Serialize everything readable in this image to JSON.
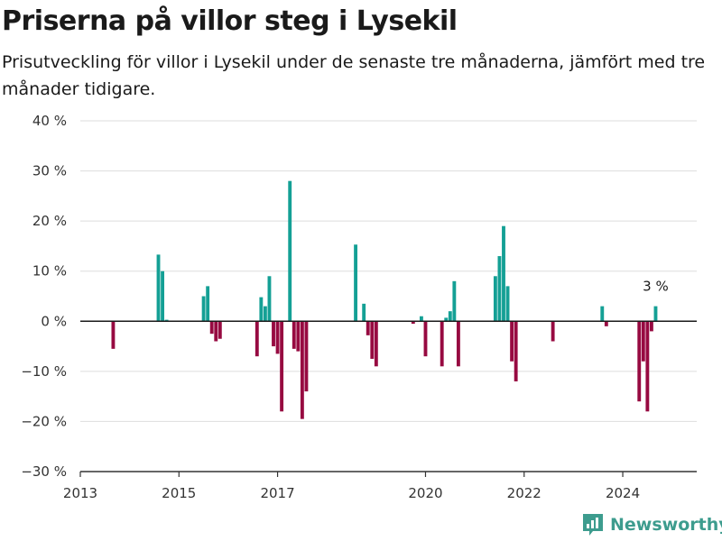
{
  "title": "Priserna på villor steg i Lysekil",
  "subtitle": "Prisutveckling för villor i Lysekil under de senaste tre månaderna, jämfört med tre månader tidigare.",
  "brand": {
    "name": "Newsworthy",
    "icon": "newsworthy-logo-icon",
    "color": "#3d9c8e"
  },
  "colors": {
    "positive": "#14a095",
    "negative": "#970a41",
    "zero_line": "#1a1a1a",
    "grid": "#dddddd"
  },
  "chart_data": {
    "type": "bar",
    "title": "Priserna på villor steg i Lysekil",
    "subtitle": "Prisutveckling för villor i Lysekil under de senaste tre månaderna, jämfört med tre månader tidigare.",
    "xlabel": "",
    "ylabel": "",
    "ylim": [
      -30,
      40
    ],
    "yticks": [
      -30,
      -20,
      -10,
      0,
      10,
      20,
      30,
      40
    ],
    "ytick_labels": [
      "−30 %",
      "−20 %",
      "−10 %",
      "0 %",
      "10 %",
      "20 %",
      "30 %",
      "40 %"
    ],
    "xlim": [
      "2013-01",
      "2025-07"
    ],
    "xticks": [
      "2013-01",
      "2015-01",
      "2017-01",
      "2020-01",
      "2022-01",
      "2024-01"
    ],
    "xtick_labels": [
      "2013",
      "2015",
      "2017",
      "2020",
      "2022",
      "2024"
    ],
    "grid": "horizontal",
    "legend": "none",
    "value_label": "3 %",
    "x": [
      "2013-09",
      "2014-08",
      "2014-09",
      "2014-10",
      "2015-07",
      "2015-08",
      "2015-09",
      "2015-10",
      "2015-11",
      "2016-08",
      "2016-09",
      "2016-10",
      "2016-11",
      "2016-12",
      "2017-01",
      "2017-02",
      "2017-04",
      "2017-05",
      "2017-06",
      "2017-07",
      "2017-08",
      "2017-09",
      "2018-08",
      "2018-10",
      "2018-11",
      "2018-12",
      "2019-01",
      "2019-10",
      "2019-12",
      "2020-01",
      "2020-05",
      "2020-06",
      "2020-07",
      "2020-08",
      "2020-09",
      "2021-06",
      "2021-07",
      "2021-08",
      "2021-09",
      "2021-10",
      "2021-11",
      "2022-08",
      "2023-08",
      "2023-09",
      "2024-05",
      "2024-06",
      "2024-07",
      "2024-08",
      "2024-09"
    ],
    "values": [
      -5.5,
      13.3,
      10,
      0.3,
      5,
      7,
      -2.5,
      -4,
      -3.5,
      -7,
      4.8,
      3,
      9,
      -5,
      -6.5,
      -18,
      28,
      -5.5,
      -6,
      -19.5,
      -14,
      0,
      15.3,
      3.5,
      -2.8,
      -7.5,
      -9,
      -0.5,
      1,
      -7,
      -9,
      0.7,
      2,
      8,
      -9,
      9,
      13,
      19,
      7,
      -8,
      -12,
      -4,
      3,
      -1,
      -16,
      -8,
      -18,
      -2,
      3
    ]
  }
}
